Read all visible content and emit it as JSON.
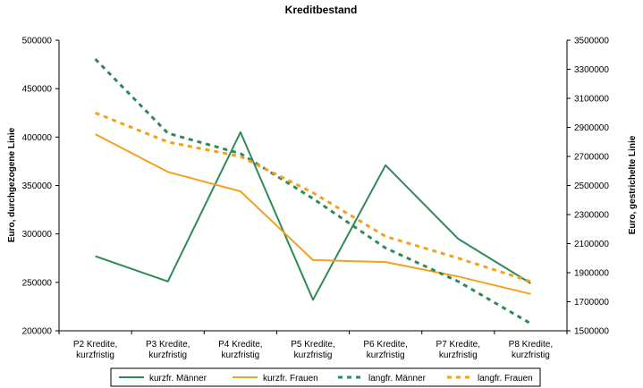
{
  "chart_data": {
    "type": "line",
    "title": "Kreditbestand",
    "categories": [
      [
        "P2 Kredite,",
        "kurzfristig"
      ],
      [
        "P3 Kredite,",
        "kurzfristig"
      ],
      [
        "P4 Kredite,",
        "kurzfristig"
      ],
      [
        "P5 Kredite,",
        "kurzfristig"
      ],
      [
        "P6 Kredite,",
        "kurzfristig"
      ],
      [
        "P7 Kredite,",
        "kurzfristig"
      ],
      [
        "P8 Kredite,",
        "kurzfristig"
      ]
    ],
    "ylabel_left": "Euro, durchgezogene Linie",
    "ylabel_right": "Euro, gestrichelte Linie",
    "ylim_left": [
      200000,
      500000
    ],
    "ylim_right": [
      1500000,
      3500000
    ],
    "yticks_left": [
      200000,
      250000,
      300000,
      350000,
      400000,
      450000,
      500000
    ],
    "yticks_right": [
      1500000,
      1700000,
      1900000,
      2100000,
      2300000,
      2500000,
      2700000,
      2900000,
      3100000,
      3300000,
      3500000
    ],
    "grid": false,
    "legend_position": "bottom",
    "series": [
      {
        "name": "kurzfr. Männer",
        "axis": "left",
        "dash": "solid",
        "color": "#2e8b57",
        "values": [
          277000,
          251000,
          405000,
          232000,
          371000,
          295000,
          249000
        ]
      },
      {
        "name": "kurzfr. Frauen",
        "axis": "left",
        "dash": "solid",
        "color": "#f5a020",
        "values": [
          403000,
          364000,
          344000,
          273000,
          271000,
          256000,
          238000
        ]
      },
      {
        "name": "langfr. Männer",
        "axis": "right",
        "dash": "dashed",
        "color": "#2e8b57",
        "values": [
          3370000,
          2860000,
          2720000,
          2410000,
          2070000,
          1840000,
          1550000
        ]
      },
      {
        "name": "langfr. Frauen",
        "axis": "right",
        "dash": "dashed",
        "color": "#f5a020",
        "values": [
          3000000,
          2800000,
          2700000,
          2450000,
          2150000,
          2000000,
          1840000
        ]
      }
    ]
  }
}
